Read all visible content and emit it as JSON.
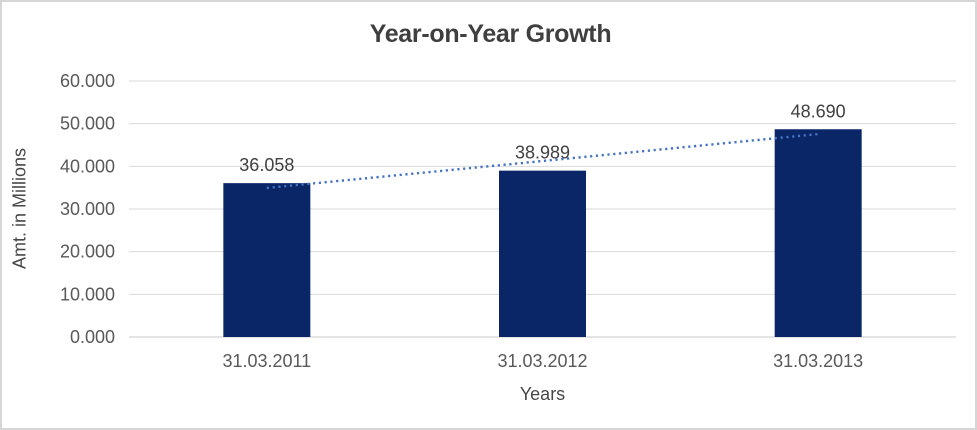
{
  "chart_data": {
    "type": "bar",
    "title": "Year-on-Year Growth",
    "xlabel": "Years",
    "ylabel": "Amt. in Millions",
    "categories": [
      "31.03.2011",
      "31.03.2012",
      "31.03.2013"
    ],
    "values": [
      36.058,
      38.989,
      48.69
    ],
    "value_labels": [
      "36.058",
      "38.989",
      "48.690"
    ],
    "ylim": [
      0,
      60
    ],
    "ytick_step": 10,
    "ytick_labels": [
      "0.000",
      "10.000",
      "20.000",
      "30.000",
      "40.000",
      "50.000",
      "60.000"
    ],
    "grid": true,
    "legend": "none",
    "trendline": {
      "fit": "linear",
      "style": "dotted"
    },
    "colors": {
      "bar": "#0a2666",
      "trendline": "#4472c4",
      "gridline": "#d9d9d9",
      "axis_line": "#c9c9c9",
      "title": "#3f3f3f",
      "tick_label": "#595959",
      "data_label": "#404040",
      "frame_border": "#d6d6d6",
      "background": "#ffffff"
    }
  }
}
